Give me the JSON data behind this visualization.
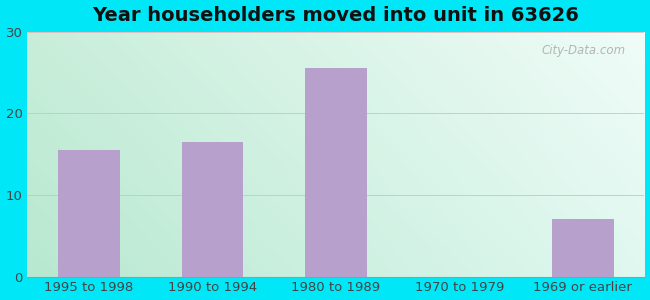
{
  "title": "Year householders moved into unit in 63626",
  "categories": [
    "1995 to 1998",
    "1990 to 1994",
    "1980 to 1989",
    "1970 to 1979",
    "1969 or earlier"
  ],
  "values": [
    15.5,
    16.5,
    25.5,
    0,
    7.0
  ],
  "bar_color": "#b8a0cc",
  "ylim": [
    0,
    30
  ],
  "yticks": [
    0,
    10,
    20,
    30
  ],
  "outer_bg_color": "#00e8f8",
  "title_fontsize": 14,
  "tick_fontsize": 9.5,
  "watermark_text": "City-Data.com",
  "gradient_topleft": "#c8eeda",
  "gradient_topright": "#e8f8f5",
  "gradient_bottomleft": "#c0ecd5",
  "gradient_bottomright": "#daf5ef"
}
